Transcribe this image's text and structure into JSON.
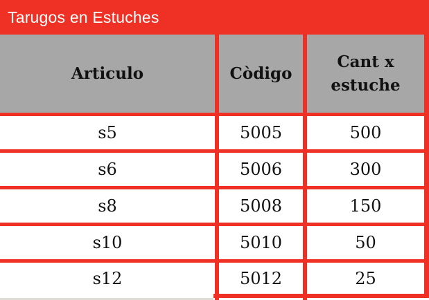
{
  "banner": {
    "title": "Tarugos en Estuches"
  },
  "colors": {
    "accent_red": "#ee3124",
    "header_gray": "#a7a7a7",
    "bottom_strip_gray": "#dedcd5",
    "banner_text": "#ffffff",
    "cell_text": "#111111"
  },
  "table": {
    "headers": [
      "Articulo",
      "Còdigo",
      "Cant x\nestuche"
    ],
    "rows": [
      {
        "articulo": "s5",
        "codigo": "5005",
        "cant": "500"
      },
      {
        "articulo": "s6",
        "codigo": "5006",
        "cant": "300"
      },
      {
        "articulo": "s8",
        "codigo": "5008",
        "cant": "150"
      },
      {
        "articulo": "s10",
        "codigo": "5010",
        "cant": "50"
      },
      {
        "articulo": "s12",
        "codigo": "5012",
        "cant": "25"
      }
    ]
  }
}
